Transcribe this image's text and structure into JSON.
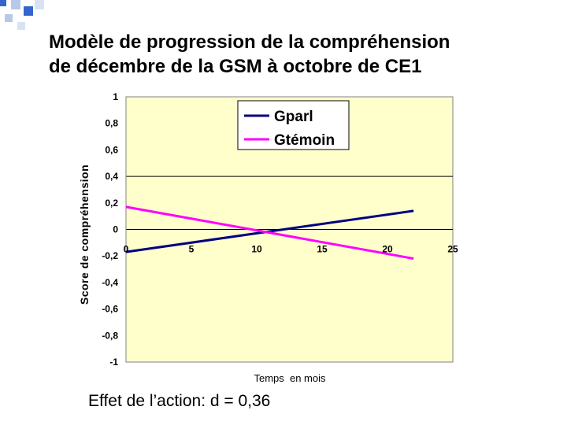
{
  "slide": {
    "title_line1": "Modèle de progression de la compréhension",
    "title_line2": "de décembre de la GSM à octobre de CE1",
    "footnote": "Effet de l’action: d = 0,36"
  },
  "colors": {
    "plot_background": "#ffffcc",
    "decor_blue": "#3366cc",
    "decor_light": "#b8c8e8",
    "series_gparl": "#000080",
    "series_gtemoin": "#ff00ff"
  },
  "chart_data": {
    "type": "line",
    "title": "",
    "xlabel": "Temps  en mois",
    "ylabel": "Score de compréhension",
    "xlim": [
      0,
      25
    ],
    "ylim": [
      -1,
      1
    ],
    "x_ticks": [
      "0",
      "5",
      "10",
      "15",
      "20",
      "25"
    ],
    "y_ticks": [
      "1",
      "0,8",
      "0,6",
      "0,4",
      "0,2",
      "0",
      "-0,2",
      "-0,4",
      "-0,6",
      "-0,8",
      "-1"
    ],
    "legend_position": "top-right",
    "grid": "y-major-0.4",
    "series": [
      {
        "name": "Gparl",
        "x": [
          0,
          22
        ],
        "y": [
          -0.17,
          0.14
        ]
      },
      {
        "name": "Gtémoin",
        "x": [
          0,
          22
        ],
        "y": [
          0.17,
          -0.22
        ]
      }
    ]
  }
}
